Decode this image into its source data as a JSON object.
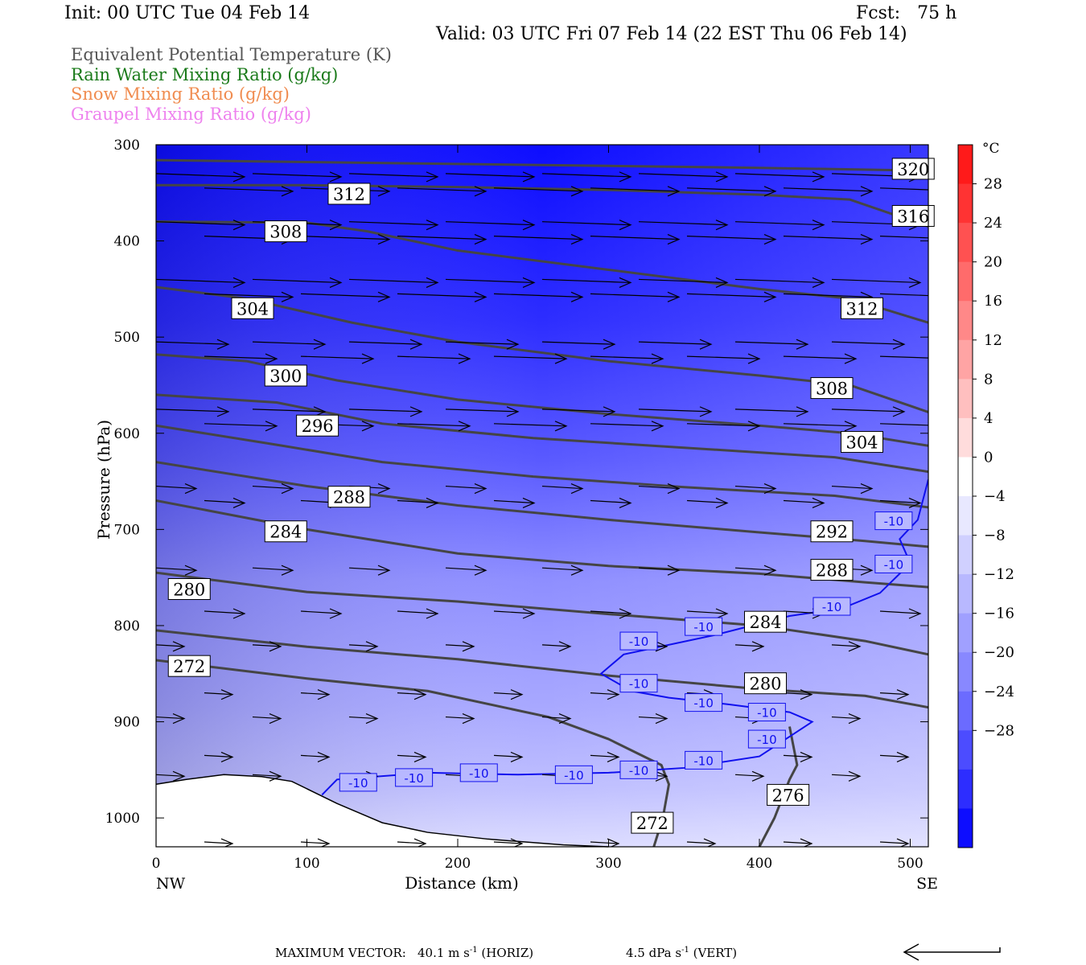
{
  "header": {
    "init": "Init: 00 UTC Tue 04 Feb 14",
    "fcst": "Fcst:   75 h",
    "valid": "Valid: 03 UTC Fri 07 Feb 14 (22 EST Thu 06 Feb 14)"
  },
  "legend": [
    {
      "label": "Equivalent Potential Temperature (K)",
      "color": "#555555"
    },
    {
      "label": "Rain Water Mixing Ratio (g/kg)",
      "color": "#1a7a1a"
    },
    {
      "label": "Snow Mixing Ratio (g/kg)",
      "color": "#f08c50"
    },
    {
      "label": "Graupel Mixing Ratio (g/kg)",
      "color": "#ee82ee"
    }
  ],
  "chart_data": {
    "type": "contour",
    "xlabel": "Distance (km)",
    "ylabel": "Pressure (hPa)",
    "xlim": [
      0,
      512
    ],
    "ylim": [
      1030,
      300
    ],
    "xticks": [
      0,
      100,
      200,
      300,
      400,
      500
    ],
    "yticks": [
      300,
      400,
      500,
      600,
      700,
      800,
      900,
      1000
    ],
    "x_endpoints": {
      "left": "NW",
      "right": "SE"
    },
    "colorbar": {
      "unit": "°C",
      "levels": [
        28,
        24,
        20,
        16,
        12,
        8,
        4,
        0,
        -4,
        -8,
        -12,
        -16,
        -20,
        -24,
        -28
      ],
      "colors": [
        "#ff1a1a",
        "#ff3333",
        "#ff5151",
        "#ff6b6b",
        "#ff8888",
        "#ffa4a4",
        "#ffbfbf",
        "#ffdcdc",
        "#ffffff",
        "#e8e8ff",
        "#d0d0ff",
        "#b8b8ff",
        "#a0a0ff",
        "#8888ff",
        "#6b6bff",
        "#4c4cff",
        "#2d2dff",
        "#0d0dff"
      ]
    },
    "theta_e_contours": [
      {
        "label": "320",
        "points": [
          [
            0,
            316
          ],
          [
            100,
            318
          ],
          [
            200,
            320
          ],
          [
            300,
            322
          ],
          [
            400,
            324
          ],
          [
            512,
            327
          ]
        ]
      },
      {
        "label": "316",
        "points": [
          [
            0,
            342
          ],
          [
            100,
            342
          ],
          [
            200,
            344
          ],
          [
            300,
            347
          ],
          [
            400,
            352
          ],
          [
            460,
            357
          ],
          [
            512,
            385
          ]
        ]
      },
      {
        "label": "312",
        "points": [
          [
            0,
            380
          ],
          [
            100,
            381
          ],
          [
            140,
            390
          ],
          [
            200,
            410
          ],
          [
            300,
            430
          ],
          [
            400,
            450
          ],
          [
            460,
            460
          ],
          [
            512,
            485
          ]
        ]
      },
      {
        "label": "308",
        "points": [
          [
            0,
            448
          ],
          [
            60,
            460
          ],
          [
            130,
            485
          ],
          [
            200,
            505
          ],
          [
            300,
            525
          ],
          [
            400,
            540
          ],
          [
            460,
            550
          ],
          [
            512,
            578
          ]
        ]
      },
      {
        "label": "304",
        "points": [
          [
            0,
            518
          ],
          [
            60,
            525
          ],
          [
            120,
            545
          ],
          [
            200,
            565
          ],
          [
            300,
            580
          ],
          [
            400,
            592
          ],
          [
            460,
            600
          ],
          [
            512,
            613
          ]
        ]
      },
      {
        "label": "300",
        "points": [
          [
            0,
            560
          ],
          [
            80,
            568
          ],
          [
            150,
            590
          ],
          [
            250,
            605
          ],
          [
            350,
            615
          ],
          [
            450,
            625
          ],
          [
            512,
            640
          ]
        ]
      },
      {
        "label": "296",
        "points": [
          [
            0,
            592
          ],
          [
            80,
            612
          ],
          [
            150,
            630
          ],
          [
            250,
            645
          ],
          [
            350,
            656
          ],
          [
            450,
            665
          ],
          [
            512,
            677
          ]
        ]
      },
      {
        "label": "292",
        "points": [
          [
            0,
            630
          ],
          [
            100,
            655
          ],
          [
            200,
            675
          ],
          [
            300,
            690
          ],
          [
            400,
            703
          ],
          [
            470,
            712
          ],
          [
            512,
            718
          ]
        ]
      },
      {
        "label": "288",
        "points": [
          [
            0,
            670
          ],
          [
            100,
            700
          ],
          [
            200,
            725
          ],
          [
            300,
            738
          ],
          [
            400,
            746
          ],
          [
            470,
            755
          ],
          [
            512,
            760
          ]
        ]
      },
      {
        "label": "284",
        "points": [
          [
            0,
            745
          ],
          [
            100,
            765
          ],
          [
            200,
            775
          ],
          [
            300,
            788
          ],
          [
            400,
            800
          ],
          [
            470,
            816
          ],
          [
            512,
            830
          ]
        ]
      },
      {
        "label": "280",
        "points": [
          [
            0,
            805
          ],
          [
            100,
            822
          ],
          [
            200,
            835
          ],
          [
            300,
            852
          ],
          [
            400,
            866
          ],
          [
            470,
            873
          ],
          [
            512,
            885
          ]
        ]
      },
      {
        "label": "276",
        "points": [
          [
            0,
            836
          ],
          [
            100,
            855
          ],
          [
            180,
            868
          ],
          [
            260,
            895
          ],
          [
            300,
            918
          ],
          [
            335,
            945
          ],
          [
            340,
            965
          ],
          [
            336,
            1000
          ],
          [
            330,
            1030
          ]
        ]
      },
      {
        "label": "272",
        "points": [
          [
            400,
            1030
          ],
          [
            410,
            1000
          ],
          [
            420,
            960
          ],
          [
            425,
            945
          ],
          [
            420,
            905
          ]
        ]
      }
    ],
    "contour_labels": [
      {
        "value": "320",
        "x": 502,
        "p": 325
      },
      {
        "value": "316",
        "x": 502,
        "p": 374
      },
      {
        "value": "312",
        "x": 128,
        "p": 351
      },
      {
        "value": "308",
        "x": 86,
        "p": 390
      },
      {
        "value": "304",
        "x": 64,
        "p": 470
      },
      {
        "value": "312",
        "x": 468,
        "p": 470
      },
      {
        "value": "300",
        "x": 86,
        "p": 540
      },
      {
        "value": "308",
        "x": 448,
        "p": 553
      },
      {
        "value": "296",
        "x": 107,
        "p": 592
      },
      {
        "value": "304",
        "x": 468,
        "p": 609
      },
      {
        "value": "288",
        "x": 128,
        "p": 666
      },
      {
        "value": "284",
        "x": 86,
        "p": 702
      },
      {
        "value": "292",
        "x": 448,
        "p": 702
      },
      {
        "value": "288",
        "x": 448,
        "p": 742
      },
      {
        "value": "280",
        "x": 22,
        "p": 762
      },
      {
        "value": "284",
        "x": 404,
        "p": 796
      },
      {
        "value": "272",
        "x": 22,
        "p": 842
      },
      {
        "value": "280",
        "x": 404,
        "p": 860
      },
      {
        "value": "276",
        "x": 419,
        "p": 976
      },
      {
        "value": "272",
        "x": 329,
        "p": 1005
      }
    ],
    "temperature_isotherm": {
      "value": "-10",
      "points": [
        [
          110,
          976
        ],
        [
          120,
          960
        ],
        [
          180,
          953
        ],
        [
          240,
          955
        ],
        [
          300,
          953
        ],
        [
          350,
          948
        ],
        [
          400,
          936
        ],
        [
          435,
          900
        ],
        [
          420,
          890
        ],
        [
          380,
          882
        ],
        [
          340,
          875
        ],
        [
          315,
          868
        ],
        [
          295,
          850
        ],
        [
          310,
          830
        ],
        [
          370,
          810
        ],
        [
          420,
          790
        ],
        [
          455,
          782
        ],
        [
          480,
          766
        ],
        [
          493,
          746
        ],
        [
          500,
          735
        ],
        [
          493,
          710
        ],
        [
          505,
          690
        ],
        [
          512,
          648
        ]
      ],
      "labels": [
        {
          "value": "-10",
          "x": 134,
          "p": 963
        },
        {
          "value": "-10",
          "x": 171,
          "p": 958
        },
        {
          "value": "-10",
          "x": 214,
          "p": 953
        },
        {
          "value": "-10",
          "x": 277,
          "p": 955
        },
        {
          "value": "-10",
          "x": 320,
          "p": 950
        },
        {
          "value": "-10",
          "x": 363,
          "p": 940
        },
        {
          "value": "-10",
          "x": 405,
          "p": 918
        },
        {
          "value": "-10",
          "x": 405,
          "p": 890
        },
        {
          "value": "-10",
          "x": 363,
          "p": 880
        },
        {
          "value": "-10",
          "x": 320,
          "p": 860
        },
        {
          "value": "-10",
          "x": 320,
          "p": 816
        },
        {
          "value": "-10",
          "x": 363,
          "p": 801
        },
        {
          "value": "-10",
          "x": 448,
          "p": 780
        },
        {
          "value": "-10",
          "x": 489,
          "p": 736
        },
        {
          "value": "-10",
          "x": 489,
          "p": 691
        }
      ]
    },
    "terrain": [
      [
        0,
        965
      ],
      [
        20,
        960
      ],
      [
        45,
        955
      ],
      [
        70,
        957
      ],
      [
        90,
        962
      ],
      [
        120,
        985
      ],
      [
        150,
        1005
      ],
      [
        180,
        1015
      ],
      [
        220,
        1022
      ],
      [
        270,
        1028
      ],
      [
        300,
        1030
      ]
    ],
    "vector_scale": {
      "horizontal": "40.1 m s⁻¹ (HORIZ)",
      "vertical": "4.5 dPa s⁻¹ (VERT)"
    }
  },
  "footer": {
    "label": "MAXIMUM VECTOR:",
    "horiz_value": "40.1 m s",
    "horiz_unit": "(HORIZ)",
    "vert_value": "4.5 dPa s",
    "vert_unit": "(VERT)",
    "exp": "-1"
  }
}
